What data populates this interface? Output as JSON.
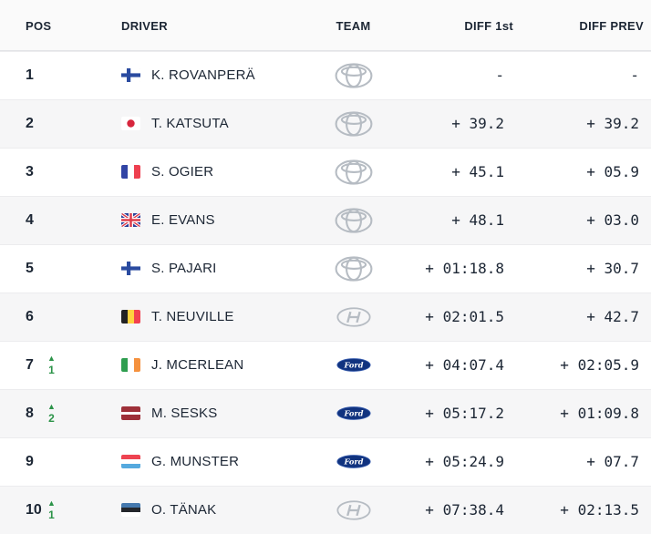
{
  "table": {
    "columns": [
      {
        "id": "pos",
        "label": "POS"
      },
      {
        "id": "driver",
        "label": "DRIVER"
      },
      {
        "id": "team",
        "label": "TEAM"
      },
      {
        "id": "diff_first",
        "label": "DIFF 1st"
      },
      {
        "id": "diff_prev",
        "label": "DIFF PREV"
      }
    ],
    "rows": [
      {
        "pos": "1",
        "change": null,
        "flag": "finland",
        "driver": "K. ROVANPERÄ",
        "team": "toyota",
        "diff_first": "-",
        "diff_prev": "-"
      },
      {
        "pos": "2",
        "change": null,
        "flag": "japan",
        "driver": "T. KATSUTA",
        "team": "toyota",
        "diff_first": "+ 39.2",
        "diff_prev": "+ 39.2"
      },
      {
        "pos": "3",
        "change": null,
        "flag": "france",
        "driver": "S. OGIER",
        "team": "toyota",
        "diff_first": "+ 45.1",
        "diff_prev": "+ 05.9"
      },
      {
        "pos": "4",
        "change": null,
        "flag": "united-kingdom",
        "driver": "E. EVANS",
        "team": "toyota",
        "diff_first": "+ 48.1",
        "diff_prev": "+ 03.0"
      },
      {
        "pos": "5",
        "change": null,
        "flag": "finland",
        "driver": "S. PAJARI",
        "team": "toyota",
        "diff_first": "+ 01:18.8",
        "diff_prev": "+ 30.7"
      },
      {
        "pos": "6",
        "change": null,
        "flag": "belgium",
        "driver": "T. NEUVILLE",
        "team": "hyundai",
        "diff_first": "+ 02:01.5",
        "diff_prev": "+ 42.7"
      },
      {
        "pos": "7",
        "change": {
          "direction": "up",
          "places": "1"
        },
        "flag": "ireland",
        "driver": "J. MCERLEAN",
        "team": "ford",
        "diff_first": "+ 04:07.4",
        "diff_prev": "+ 02:05.9"
      },
      {
        "pos": "8",
        "change": {
          "direction": "up",
          "places": "2"
        },
        "flag": "latvia",
        "driver": "M. SESKS",
        "team": "ford",
        "diff_first": "+ 05:17.2",
        "diff_prev": "+ 01:09.8"
      },
      {
        "pos": "9",
        "change": null,
        "flag": "luxembourg",
        "driver": "G. MUNSTER",
        "team": "ford",
        "diff_first": "+ 05:24.9",
        "diff_prev": "+ 07.7"
      },
      {
        "pos": "10",
        "change": {
          "direction": "up",
          "places": "1"
        },
        "flag": "estonia",
        "driver": "O. TÄNAK",
        "team": "hyundai",
        "diff_first": "+ 07:38.4",
        "diff_prev": "+ 02:13.5"
      }
    ]
  },
  "icons": {
    "position_up_glyph": "▲"
  },
  "colors": {
    "text_primary": "#1c2634",
    "positive_change_green": "#2b9348",
    "row_background": "#ffffff",
    "row_alt_background": "#f6f6f7",
    "header_background": "#fafafa",
    "divider": "#ececee",
    "ford_blue": "#11337f",
    "logo_silver": "#b6bcc3"
  }
}
